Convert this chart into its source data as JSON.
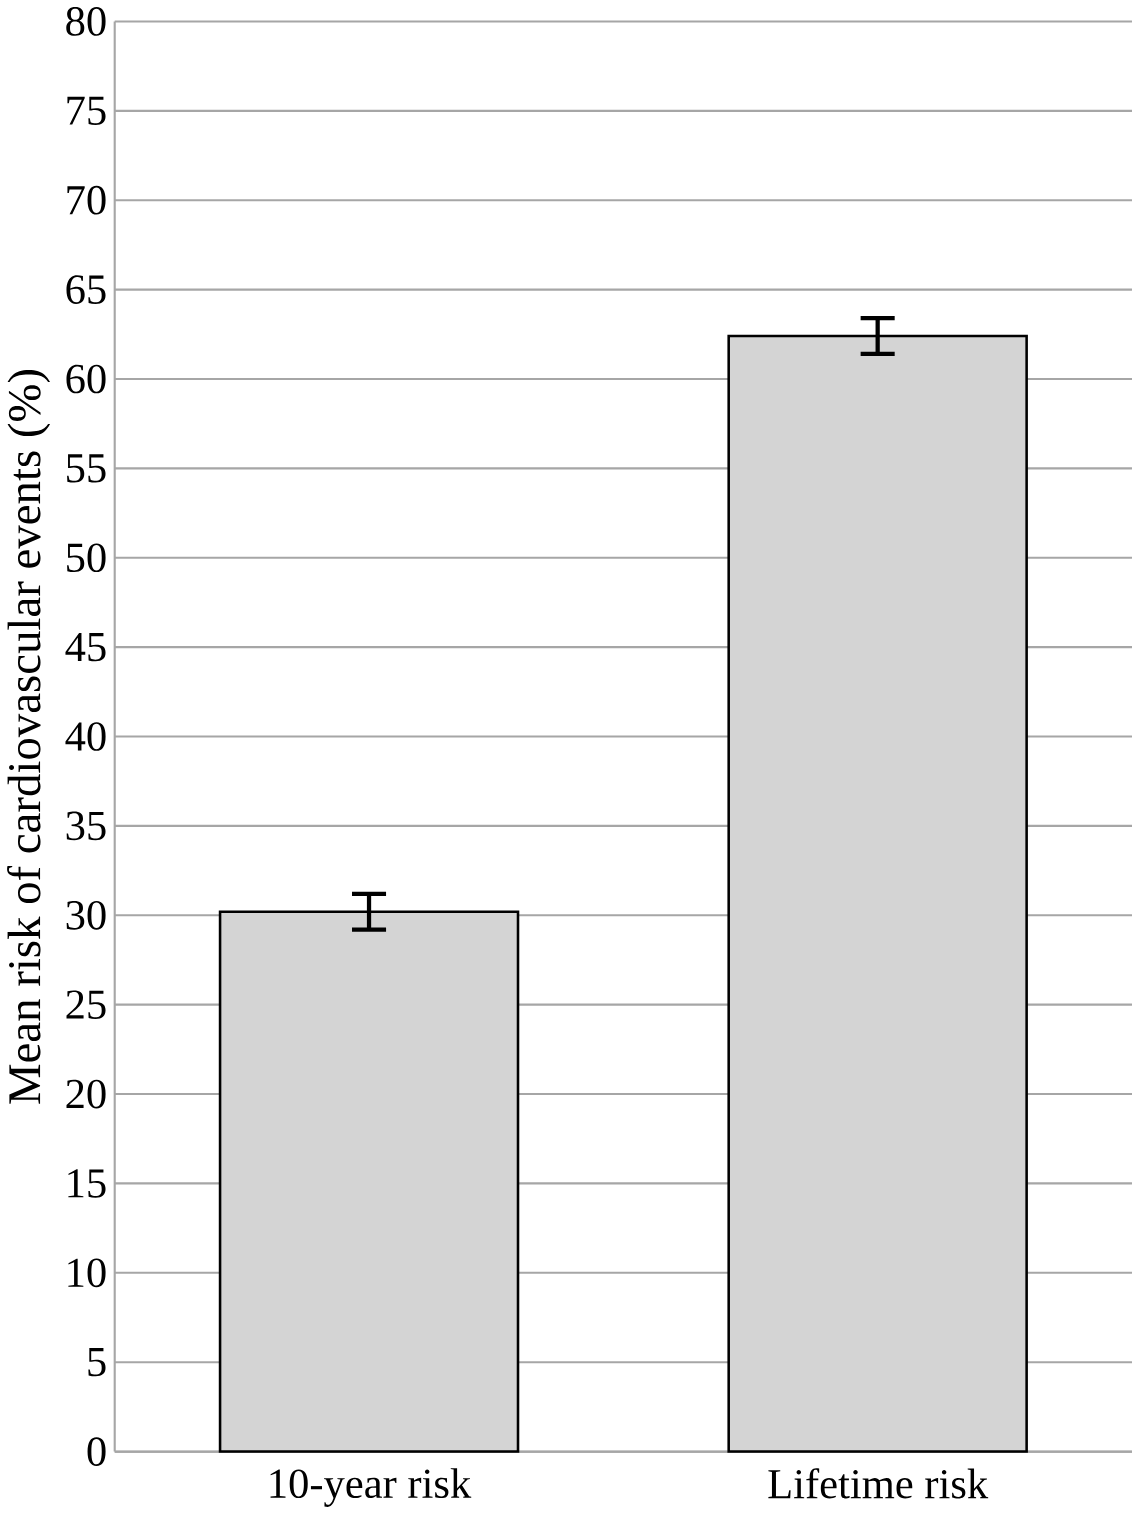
{
  "chart_data": {
    "type": "bar",
    "ylabel": "Mean risk of cardiovascular events (%)",
    "categories": [
      "10-year risk",
      "Lifetime risk"
    ],
    "values": [
      30.2,
      62.4
    ],
    "errors": [
      1,
      1
    ],
    "color": "#d4d4d4",
    "ylim": [
      0,
      80
    ],
    "yticks": [
      0,
      5,
      10,
      15,
      20,
      25,
      30,
      35,
      40,
      45,
      50,
      55,
      60,
      65,
      70,
      75,
      80
    ],
    "grid": "y"
  }
}
